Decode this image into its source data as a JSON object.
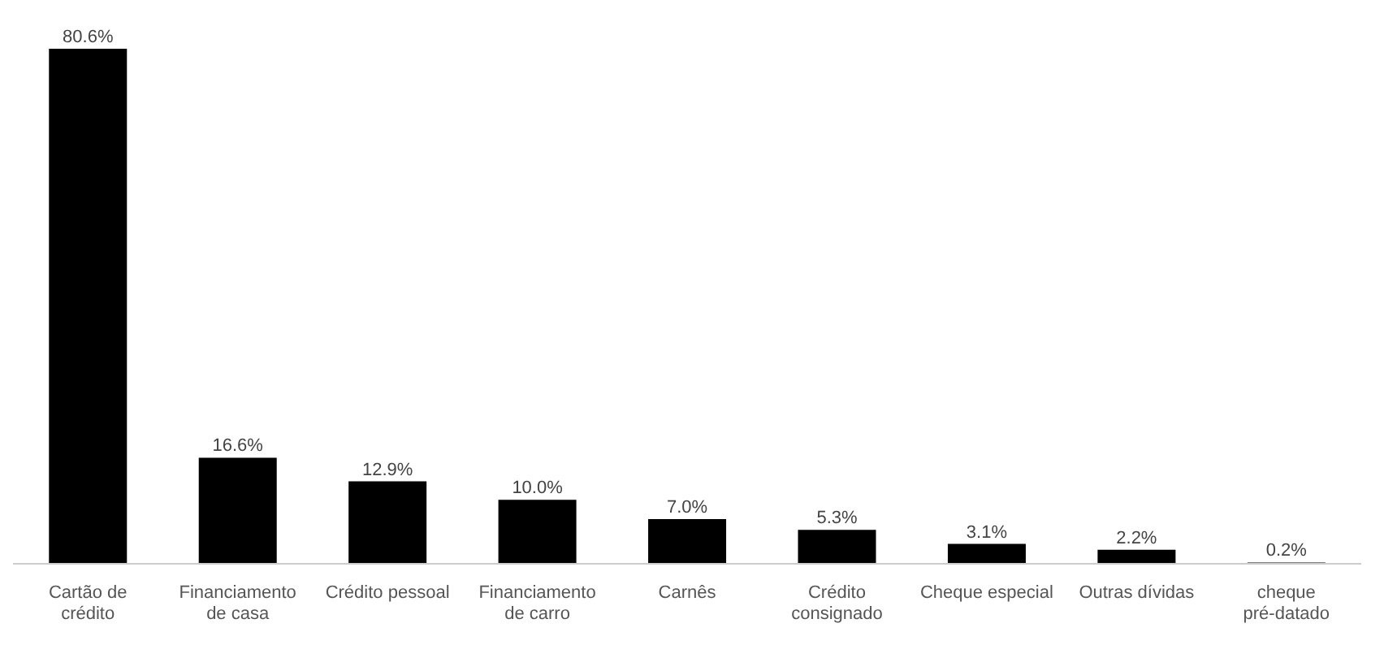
{
  "chart_data": {
    "type": "bar",
    "categories": [
      "Cartão de crédito",
      "Financiamento de casa",
      "Crédito pessoal",
      "Financiamento de carro",
      "Carnês",
      "Crédito consignado",
      "Cheque especial",
      "Outras dívidas",
      "cheque pré-datado"
    ],
    "values": [
      80.6,
      16.6,
      12.9,
      10.0,
      7.0,
      5.3,
      3.1,
      2.2,
      0.2
    ],
    "value_labels": [
      "80.6%",
      "16.6%",
      "12.9%",
      "10.0%",
      "7.0%",
      "5.3%",
      "3.1%",
      "2.2%",
      "0.2%"
    ],
    "color": "#000000",
    "ylim": [
      0,
      80.6
    ],
    "tick_labels": "x"
  }
}
